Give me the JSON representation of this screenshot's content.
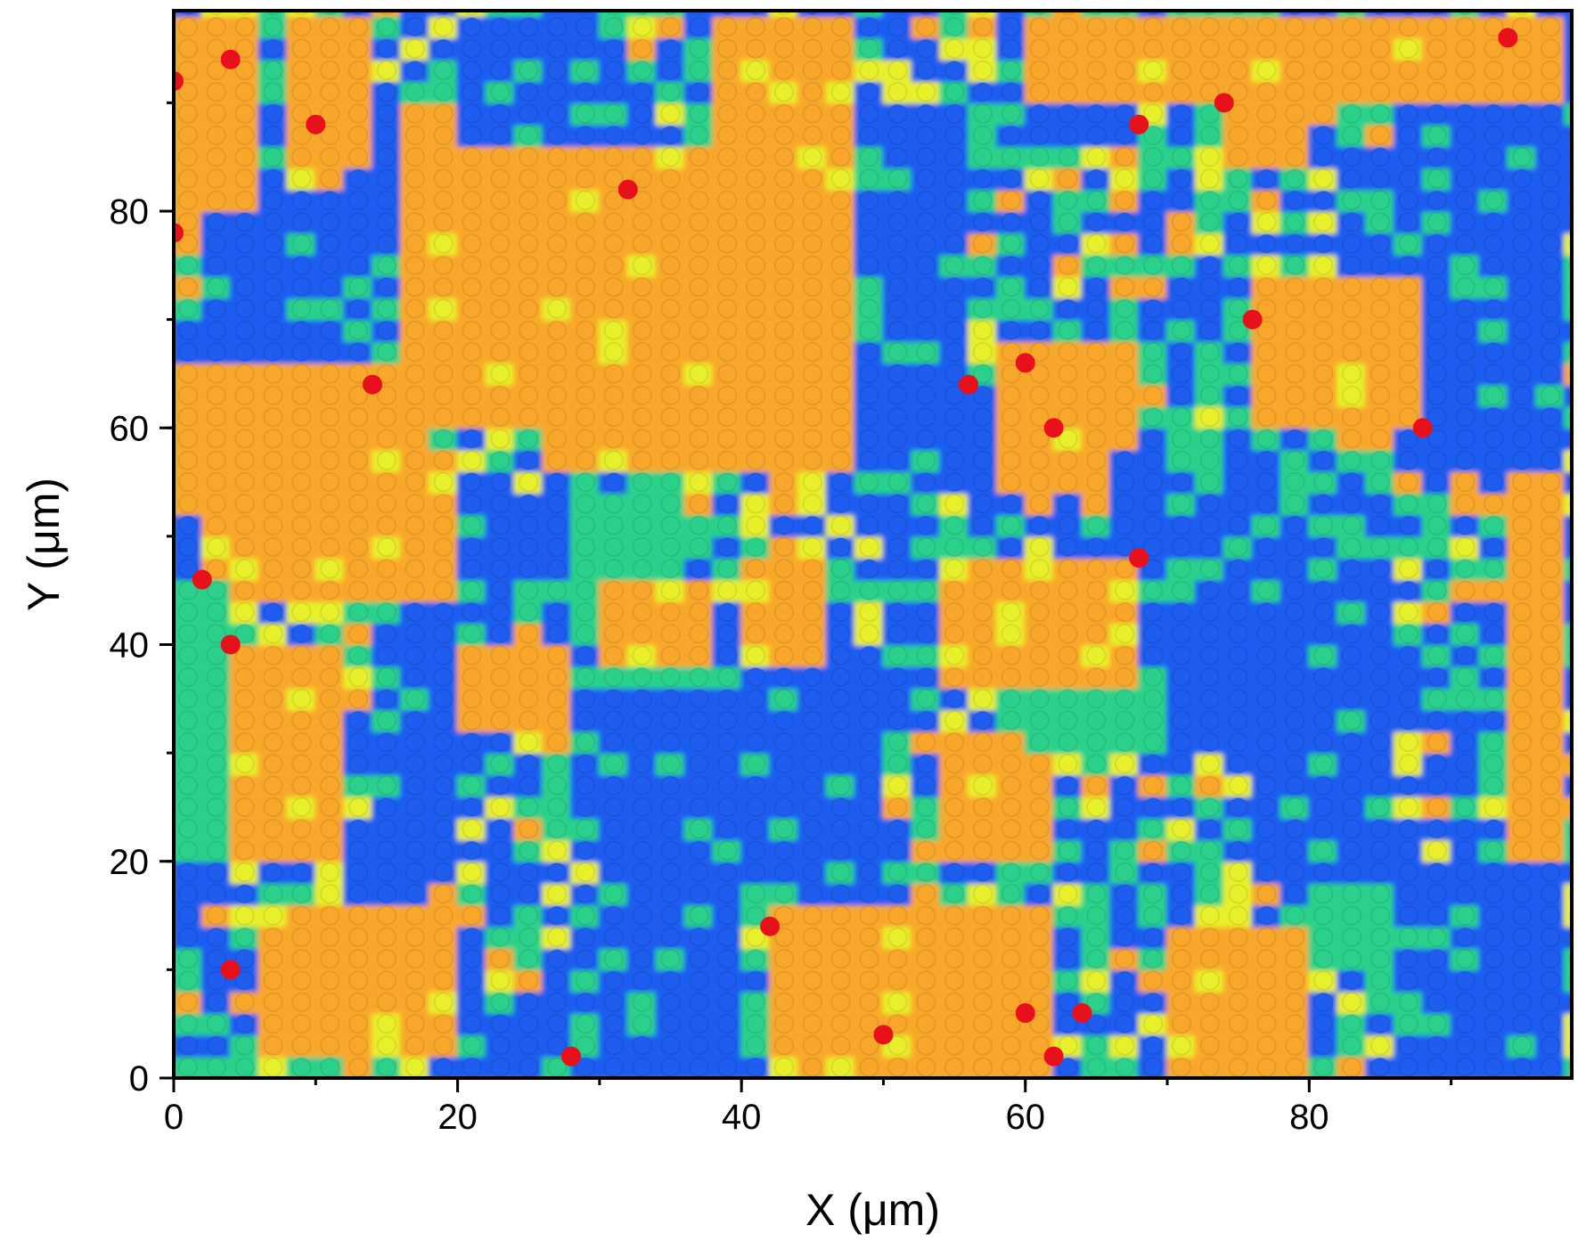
{
  "chart_data": {
    "type": "heatmap",
    "title": "",
    "xlabel": "X (μm)",
    "ylabel": "Y (μm)",
    "xlim": [
      0,
      98.5
    ],
    "ylim": [
      0,
      98.5
    ],
    "xticks": [
      {
        "value": 0,
        "label": "0"
      },
      {
        "value": 20,
        "label": "20"
      },
      {
        "value": 40,
        "label": "40"
      },
      {
        "value": 60,
        "label": "60"
      },
      {
        "value": 80,
        "label": "80"
      }
    ],
    "yticks": [
      {
        "value": 0,
        "label": "0"
      },
      {
        "value": 20,
        "label": "20"
      },
      {
        "value": 40,
        "label": "40"
      },
      {
        "value": 60,
        "label": "60"
      },
      {
        "value": 80,
        "label": "80"
      }
    ],
    "minor_tick_step": 10,
    "grid_step": 2,
    "grid": false,
    "legend": "none",
    "colors": {
      "low": "#1f5cf0",
      "mid_low": "#2bd18a",
      "mid": "#e8f02c",
      "high": "#f9a72b",
      "peak": "#e8101a"
    },
    "regions": [
      {
        "level": "high",
        "x": [
          0,
          6
        ],
        "y": [
          76,
          98
        ]
      },
      {
        "level": "high",
        "x": [
          26,
          50
        ],
        "y": [
          56,
          86
        ]
      },
      {
        "level": "high",
        "x": [
          38,
          48
        ],
        "y": [
          86,
          98
        ]
      },
      {
        "level": "high",
        "x": [
          16,
          26
        ],
        "y": [
          60,
          90
        ]
      },
      {
        "level": "high",
        "x": [
          0,
          18
        ],
        "y": [
          52,
          66
        ]
      },
      {
        "level": "high",
        "x": [
          2,
          20
        ],
        "y": [
          44,
          56
        ]
      },
      {
        "level": "high",
        "x": [
          0,
          12
        ],
        "y": [
          20,
          40
        ]
      },
      {
        "level": "high",
        "x": [
          6,
          20
        ],
        "y": [
          2,
          16
        ]
      },
      {
        "level": "high",
        "x": [
          42,
          62
        ],
        "y": [
          0,
          16
        ]
      },
      {
        "level": "high",
        "x": [
          30,
          38
        ],
        "y": [
          38,
          46
        ]
      },
      {
        "level": "high",
        "x": [
          20,
          28
        ],
        "y": [
          32,
          40
        ]
      },
      {
        "level": "high",
        "x": [
          54,
          68
        ],
        "y": [
          36,
          48
        ]
      },
      {
        "level": "high",
        "x": [
          58,
          68
        ],
        "y": [
          54,
          68
        ]
      },
      {
        "level": "high",
        "x": [
          76,
          88
        ],
        "y": [
          60,
          74
        ]
      },
      {
        "level": "high",
        "x": [
          60,
          98
        ],
        "y": [
          90,
          98
        ]
      },
      {
        "level": "high",
        "x": [
          74,
          80
        ],
        "y": [
          84,
          90
        ]
      },
      {
        "level": "high",
        "x": [
          94,
          98
        ],
        "y": [
          20,
          72
        ]
      },
      {
        "level": "high",
        "x": [
          70,
          80
        ],
        "y": [
          0,
          14
        ]
      },
      {
        "level": "high",
        "x": [
          54,
          62
        ],
        "y": [
          20,
          32
        ]
      },
      {
        "level": "high",
        "x": [
          40,
          46
        ],
        "y": [
          38,
          48
        ]
      },
      {
        "level": "high",
        "x": [
          8,
          14
        ],
        "y": [
          84,
          98
        ]
      },
      {
        "level": "low",
        "x": [
          30,
          40
        ],
        "y": [
          0,
          36
        ]
      },
      {
        "level": "low",
        "x": [
          40,
          50
        ],
        "y": [
          20,
          38
        ]
      },
      {
        "level": "low",
        "x": [
          48,
          56
        ],
        "y": [
          56,
          90
        ]
      },
      {
        "level": "low",
        "x": [
          76,
          86
        ],
        "y": [
          18,
          50
        ]
      },
      {
        "level": "low",
        "x": [
          88,
          98
        ],
        "y": [
          56,
          90
        ]
      },
      {
        "level": "low",
        "x": [
          66,
          76
        ],
        "y": [
          48,
          58
        ]
      },
      {
        "level": "low",
        "x": [
          20,
          30
        ],
        "y": [
          46,
          54
        ]
      },
      {
        "level": "low",
        "x": [
          14,
          20
        ],
        "y": [
          20,
          44
        ]
      },
      {
        "level": "low",
        "x": [
          0,
          2
        ],
        "y": [
          14,
          20
        ]
      },
      {
        "level": "low",
        "x": [
          2,
          14
        ],
        "y": [
          66,
          80
        ]
      },
      {
        "level": "low",
        "x": [
          82,
          90
        ],
        "y": [
          74,
          86
        ]
      },
      {
        "level": "low",
        "x": [
          86,
          98
        ],
        "y": [
          0,
          20
        ]
      },
      {
        "level": "low",
        "x": [
          20,
          26
        ],
        "y": [
          0,
          8
        ]
      },
      {
        "level": "low",
        "x": [
          70,
          76
        ],
        "y": [
          30,
          46
        ]
      },
      {
        "level": "low",
        "x": [
          20,
          32
        ],
        "y": [
          86,
          98
        ]
      },
      {
        "level": "mid_low",
        "x": [
          0,
          4
        ],
        "y": [
          20,
          46
        ]
      },
      {
        "level": "mid_low",
        "x": [
          28,
          36
        ],
        "y": [
          46,
          54
        ]
      },
      {
        "level": "mid_low",
        "x": [
          60,
          70
        ],
        "y": [
          30,
          36
        ]
      },
      {
        "level": "mid_low",
        "x": [
          80,
          86
        ],
        "y": [
          10,
          18
        ]
      }
    ],
    "peaks": [
      {
        "x": 76,
        "y": 70,
        "value": "peak"
      },
      {
        "x": 88,
        "y": 60,
        "value": "peak"
      },
      {
        "x": 62,
        "y": 60,
        "value": "peak"
      },
      {
        "x": 60,
        "y": 66,
        "value": "peak"
      },
      {
        "x": 56,
        "y": 64,
        "value": "peak"
      },
      {
        "x": 68,
        "y": 48,
        "value": "peak"
      },
      {
        "x": 74,
        "y": 90,
        "value": "peak"
      },
      {
        "x": 4,
        "y": 40,
        "value": "peak"
      },
      {
        "x": 4,
        "y": 10,
        "value": "peak"
      },
      {
        "x": 42,
        "y": 14,
        "value": "peak"
      },
      {
        "x": 32,
        "y": 82,
        "value": "peak"
      },
      {
        "x": 14,
        "y": 64,
        "value": "peak"
      },
      {
        "x": 94,
        "y": 96,
        "value": "peak"
      },
      {
        "x": 62,
        "y": 2,
        "value": "peak"
      },
      {
        "x": 64,
        "y": 6,
        "value": "peak"
      },
      {
        "x": 50,
        "y": 4,
        "value": "peak"
      },
      {
        "x": 60,
        "y": 6,
        "value": "peak"
      },
      {
        "x": 0,
        "y": 92,
        "value": "peak"
      },
      {
        "x": 4,
        "y": 94,
        "value": "peak"
      },
      {
        "x": 10,
        "y": 88,
        "value": "peak"
      },
      {
        "x": 68,
        "y": 88,
        "value": "peak"
      },
      {
        "x": 2,
        "y": 46,
        "value": "peak"
      },
      {
        "x": 28,
        "y": 2,
        "value": "peak"
      },
      {
        "x": 0,
        "y": 78,
        "value": "peak"
      }
    ]
  }
}
